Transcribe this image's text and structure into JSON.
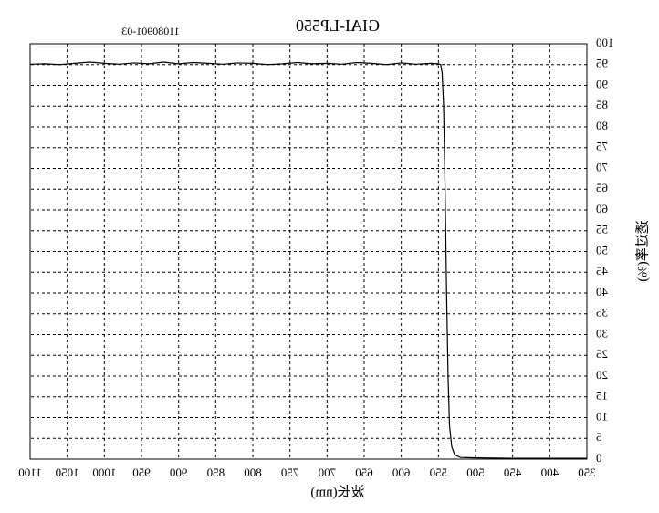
{
  "chart_data": {
    "type": "line",
    "title": "GIAI-LP550",
    "annotation": "11080901-03",
    "x_label": "波长(nm)",
    "y_label": "透过率(%)",
    "x": [
      350,
      400,
      450,
      500,
      520,
      528,
      532,
      535,
      537,
      539,
      541,
      543,
      545,
      547,
      550,
      560,
      580,
      600,
      620,
      640,
      660,
      680,
      700,
      720,
      740,
      760,
      780,
      800,
      820,
      840,
      860,
      880,
      900,
      920,
      940,
      960,
      980,
      1000,
      1020,
      1040,
      1060,
      1080,
      1100
    ],
    "series": [
      {
        "name": "LP550",
        "color": "#000000",
        "values": [
          0.2,
          0.2,
          0.2,
          0.3,
          0.4,
          1,
          3,
          8,
          20,
          40,
          65,
          85,
          93,
          95,
          95.2,
          95.3,
          95.1,
          95.4,
          95.0,
          95.3,
          95.5,
          95.1,
          95.3,
          95.2,
          95.5,
          95.2,
          95.0,
          95.3,
          95.4,
          95.1,
          95.3,
          95.5,
          95.2,
          95.6,
          95.2,
          95.4,
          95.1,
          95.3,
          95.6,
          95.3,
          95.0,
          95.2,
          95.1
        ]
      }
    ],
    "xlim": [
      350,
      1100
    ],
    "xticks": [
      350,
      400,
      450,
      500,
      550,
      600,
      650,
      700,
      750,
      800,
      850,
      900,
      950,
      1000,
      1050,
      1100
    ],
    "ylim": [
      0,
      100
    ],
    "yticks": [
      0,
      5,
      10,
      15,
      20,
      25,
      30,
      35,
      40,
      45,
      50,
      55,
      60,
      65,
      70,
      75,
      80,
      85,
      90,
      95,
      100
    ],
    "grid": true,
    "mirrored": true
  }
}
